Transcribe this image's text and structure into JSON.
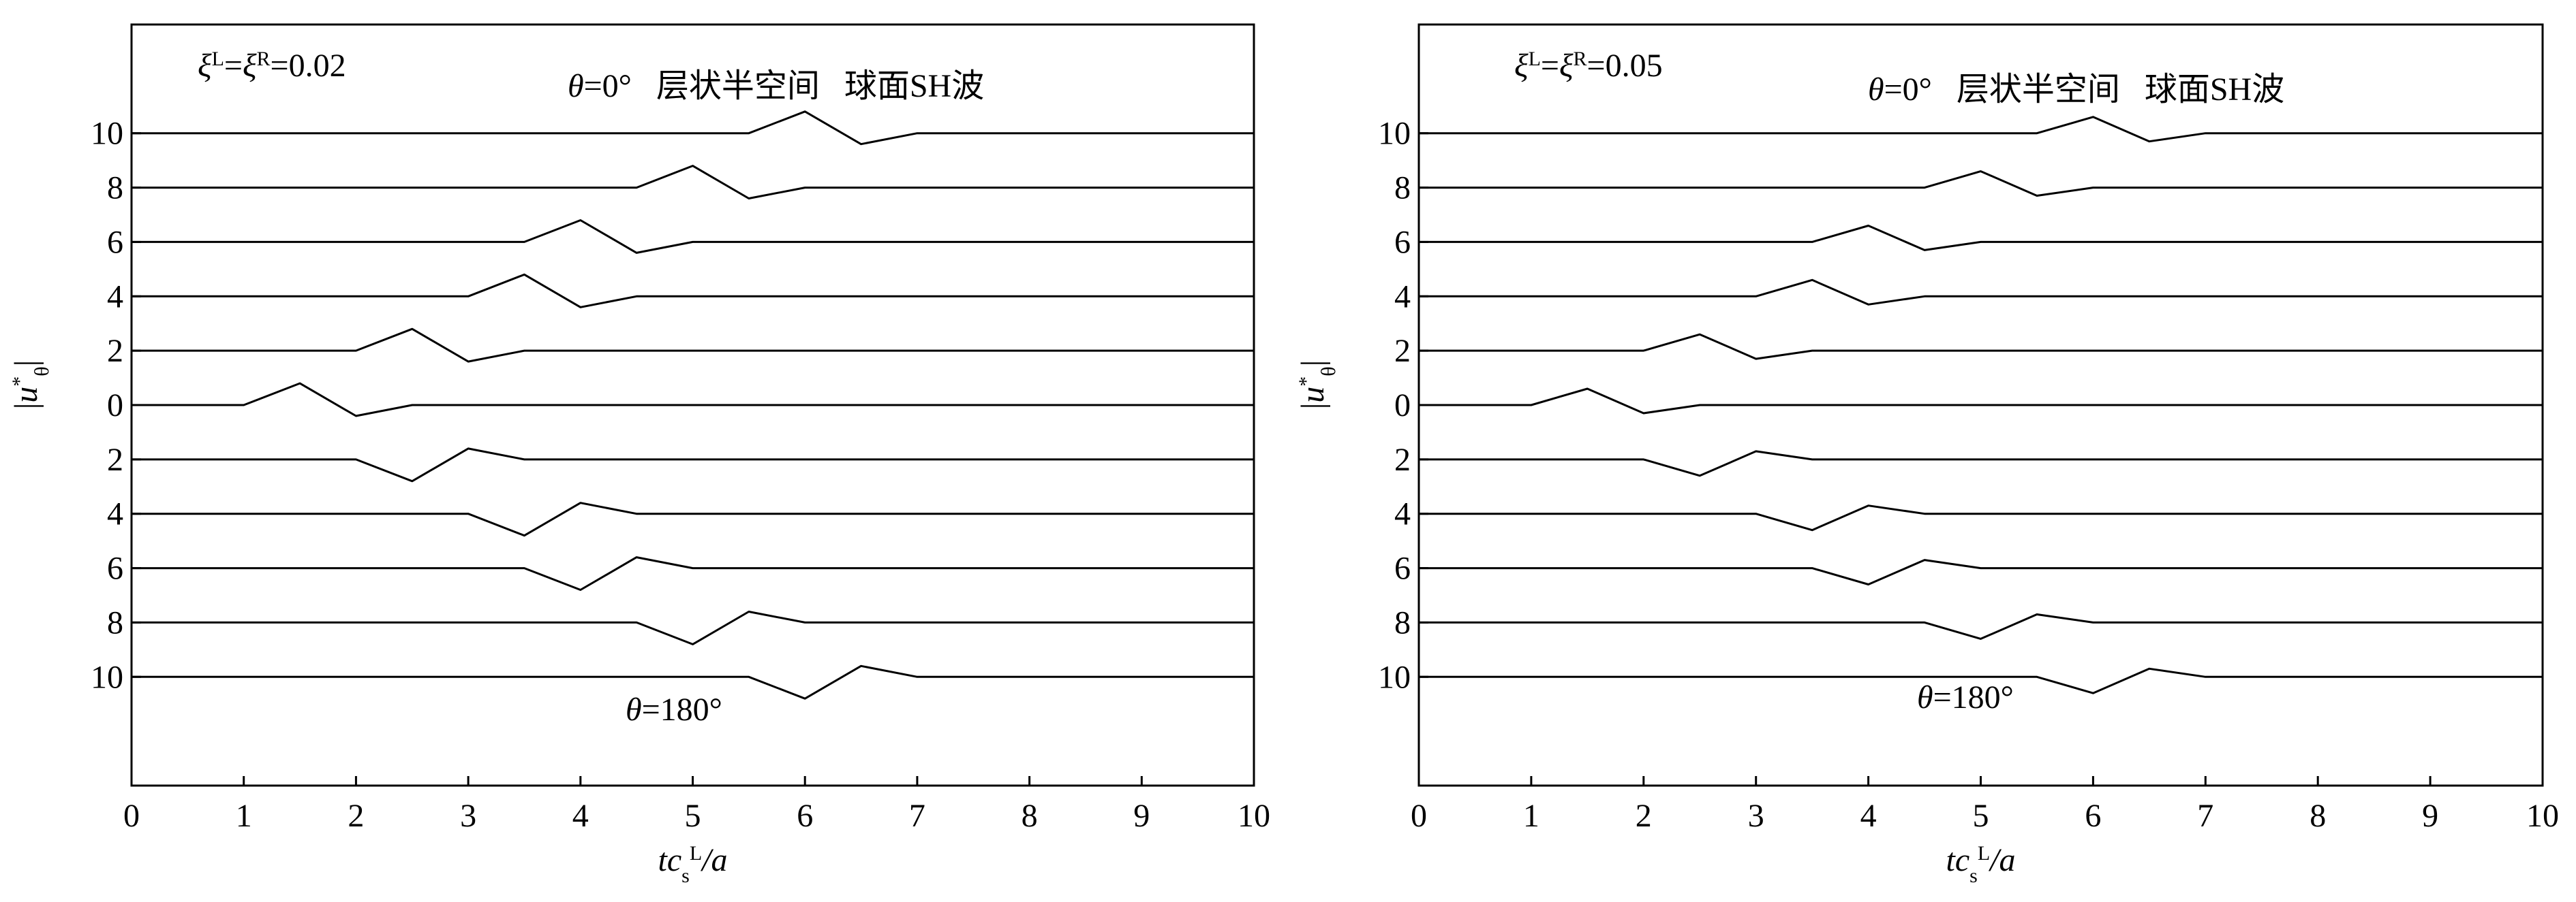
{
  "chart_data": [
    {
      "type": "line",
      "color": "#000000",
      "annotations": [
        [
          {
            "t": "ξ",
            "f": "i"
          },
          {
            "t": "L",
            "f": "sup"
          },
          {
            "t": "=",
            "f": "n"
          },
          {
            "t": "ξ",
            "f": "i"
          },
          {
            "t": "R",
            "f": "sup"
          },
          {
            "t": "=0.02",
            "f": "n"
          }
        ],
        [
          {
            "t": "θ",
            "f": "i"
          },
          {
            "t": "=0°   层状半空间   球面SH波",
            "f": "n"
          }
        ],
        [
          {
            "t": "θ",
            "f": "i"
          },
          {
            "t": "=180°",
            "f": "n"
          }
        ]
      ],
      "xlabel": [
        {
          "t": "tc",
          "f": "i"
        },
        {
          "t": "s",
          "f": "sub"
        },
        {
          "t": "L",
          "f": "sup"
        },
        {
          "t": "/a",
          "f": "i"
        }
      ],
      "ylabel": [
        {
          "t": "|",
          "f": "n"
        },
        {
          "t": "u",
          "f": "i"
        },
        {
          "t": "*",
          "f": "sup"
        },
        {
          "t": "θ",
          "f": "sub"
        },
        {
          "t": "|",
          "f": "n"
        }
      ],
      "xlim": [
        0,
        10
      ],
      "xticks": [
        0,
        1,
        2,
        3,
        4,
        5,
        6,
        7,
        8,
        9,
        10
      ],
      "ylim": [
        -14,
        14
      ],
      "yticks": [
        {
          "value": 10,
          "label": "10"
        },
        {
          "value": 8,
          "label": "8"
        },
        {
          "value": 6,
          "label": "6"
        },
        {
          "value": 4,
          "label": "4"
        },
        {
          "value": 2,
          "label": "2"
        },
        0,
        {
          "value": -2,
          "label": "2"
        },
        {
          "value": -4,
          "label": "4"
        },
        {
          "value": -6,
          "label": "6"
        },
        {
          "value": -8,
          "label": "8"
        },
        {
          "value": -10,
          "label": "10"
        }
      ],
      "x": [
        0,
        0.5,
        1,
        1.5,
        2,
        2.5,
        3,
        3.5,
        4,
        4.5,
        5,
        5.5,
        6,
        6.5,
        7,
        7.5,
        8,
        8.5,
        9,
        9.5,
        10
      ],
      "series": [
        {
          "values": [
            10,
            10,
            10,
            10,
            10,
            10,
            10,
            10,
            10,
            10,
            10,
            10,
            10.8,
            9.6,
            10,
            10,
            10,
            10,
            10,
            10,
            10
          ]
        },
        {
          "values": [
            8,
            8,
            8,
            8,
            8,
            8,
            8,
            8,
            8,
            8,
            8.8,
            7.6,
            8,
            8,
            8,
            8,
            8,
            8,
            8,
            8,
            8
          ]
        },
        {
          "values": [
            6,
            6,
            6,
            6,
            6,
            6,
            6,
            6,
            6.8,
            5.6,
            6,
            6,
            6,
            6,
            6,
            6,
            6,
            6,
            6,
            6,
            6
          ]
        },
        {
          "values": [
            4,
            4,
            4,
            4,
            4,
            4,
            4,
            4.8,
            3.6,
            4,
            4,
            4,
            4,
            4,
            4,
            4,
            4,
            4,
            4,
            4,
            4
          ]
        },
        {
          "values": [
            2,
            2,
            2,
            2,
            2,
            2.8,
            1.6,
            2,
            2,
            2,
            2,
            2,
            2,
            2,
            2,
            2,
            2,
            2,
            2,
            2,
            2
          ]
        },
        {
          "values": [
            0,
            0,
            0,
            0.8,
            -0.4,
            0,
            0,
            0,
            0,
            0,
            0,
            0,
            0,
            0,
            0,
            0,
            0,
            0,
            0,
            0,
            0
          ]
        },
        {
          "values": [
            -2,
            -2,
            -2,
            -2,
            -2,
            -2.8,
            -1.6,
            -2,
            -2,
            -2,
            -2,
            -2,
            -2,
            -2,
            -2,
            -2,
            -2,
            -2,
            -2,
            -2,
            -2
          ]
        },
        {
          "values": [
            -4,
            -4,
            -4,
            -4,
            -4,
            -4,
            -4,
            -4.8,
            -3.6,
            -4,
            -4,
            -4,
            -4,
            -4,
            -4,
            -4,
            -4,
            -4,
            -4,
            -4,
            -4
          ]
        },
        {
          "values": [
            -6,
            -6,
            -6,
            -6,
            -6,
            -6,
            -6,
            -6,
            -6.8,
            -5.6,
            -6,
            -6,
            -6,
            -6,
            -6,
            -6,
            -6,
            -6,
            -6,
            -6,
            -6
          ]
        },
        {
          "values": [
            -8,
            -8,
            -8,
            -8,
            -8,
            -8,
            -8,
            -8,
            -8,
            -8,
            -8.8,
            -7.6,
            -8,
            -8,
            -8,
            -8,
            -8,
            -8,
            -8,
            -8,
            -8
          ]
        },
        {
          "values": [
            -10,
            -10,
            -10,
            -10,
            -10,
            -10,
            -10,
            -10,
            -10,
            -10,
            -10,
            -10,
            -10.8,
            -9.6,
            -10,
            -10,
            -10,
            -10,
            -10,
            -10,
            -10
          ]
        }
      ]
    },
    {
      "type": "line",
      "color": "#000000",
      "annotations": [
        [
          {
            "t": "ξ",
            "f": "i"
          },
          {
            "t": "L",
            "f": "sup"
          },
          {
            "t": "=",
            "f": "n"
          },
          {
            "t": "ξ",
            "f": "i"
          },
          {
            "t": "R",
            "f": "sup"
          },
          {
            "t": "=0.05",
            "f": "n"
          }
        ],
        [
          {
            "t": "θ",
            "f": "i"
          },
          {
            "t": "=0°   层状半空间   球面SH波",
            "f": "n"
          }
        ],
        [
          {
            "t": "θ",
            "f": "i"
          },
          {
            "t": "=180°",
            "f": "n"
          }
        ]
      ],
      "xlabel": [
        {
          "t": "tc",
          "f": "i"
        },
        {
          "t": "s",
          "f": "sub"
        },
        {
          "t": "L",
          "f": "sup"
        },
        {
          "t": "/a",
          "f": "i"
        }
      ],
      "ylabel": [
        {
          "t": "|",
          "f": "n"
        },
        {
          "t": "u",
          "f": "i"
        },
        {
          "t": "*",
          "f": "sup"
        },
        {
          "t": "θ",
          "f": "sub"
        },
        {
          "t": "|",
          "f": "n"
        }
      ],
      "xlim": [
        0,
        10
      ],
      "xticks": [
        0,
        1,
        2,
        3,
        4,
        5,
        6,
        7,
        8,
        9,
        10
      ],
      "ylim": [
        -14,
        14
      ],
      "yticks": [
        {
          "value": 10,
          "label": "10"
        },
        {
          "value": 8,
          "label": "8"
        },
        {
          "value": 6,
          "label": "6"
        },
        {
          "value": 4,
          "label": "4"
        },
        {
          "value": 2,
          "label": "2"
        },
        0,
        {
          "value": -2,
          "label": "2"
        },
        {
          "value": -4,
          "label": "4"
        },
        {
          "value": -6,
          "label": "6"
        },
        {
          "value": -8,
          "label": "8"
        },
        {
          "value": -10,
          "label": "10"
        }
      ],
      "x": [
        0,
        0.5,
        1,
        1.5,
        2,
        2.5,
        3,
        3.5,
        4,
        4.5,
        5,
        5.5,
        6,
        6.5,
        7,
        7.5,
        8,
        8.5,
        9,
        9.5,
        10
      ],
      "series": [
        {
          "values": [
            10,
            10,
            10,
            10,
            10,
            10,
            10,
            10,
            10,
            10,
            10,
            10,
            10.6,
            9.7,
            10,
            10,
            10,
            10,
            10,
            10,
            10
          ]
        },
        {
          "values": [
            8,
            8,
            8,
            8,
            8,
            8,
            8,
            8,
            8,
            8,
            8.6,
            7.7,
            8,
            8,
            8,
            8,
            8,
            8,
            8,
            8,
            8
          ]
        },
        {
          "values": [
            6,
            6,
            6,
            6,
            6,
            6,
            6,
            6,
            6.6,
            5.7,
            6,
            6,
            6,
            6,
            6,
            6,
            6,
            6,
            6,
            6,
            6
          ]
        },
        {
          "values": [
            4,
            4,
            4,
            4,
            4,
            4,
            4,
            4.6,
            3.7,
            4,
            4,
            4,
            4,
            4,
            4,
            4,
            4,
            4,
            4,
            4,
            4
          ]
        },
        {
          "values": [
            2,
            2,
            2,
            2,
            2,
            2.6,
            1.7,
            2,
            2,
            2,
            2,
            2,
            2,
            2,
            2,
            2,
            2,
            2,
            2,
            2,
            2
          ]
        },
        {
          "values": [
            0,
            0,
            0,
            0.6,
            -0.3,
            0,
            0,
            0,
            0,
            0,
            0,
            0,
            0,
            0,
            0,
            0,
            0,
            0,
            0,
            0,
            0
          ]
        },
        {
          "values": [
            -2,
            -2,
            -2,
            -2,
            -2,
            -2.6,
            -1.7,
            -2,
            -2,
            -2,
            -2,
            -2,
            -2,
            -2,
            -2,
            -2,
            -2,
            -2,
            -2,
            -2,
            -2
          ]
        },
        {
          "values": [
            -4,
            -4,
            -4,
            -4,
            -4,
            -4,
            -4,
            -4.6,
            -3.7,
            -4,
            -4,
            -4,
            -4,
            -4,
            -4,
            -4,
            -4,
            -4,
            -4,
            -4,
            -4
          ]
        },
        {
          "values": [
            -6,
            -6,
            -6,
            -6,
            -6,
            -6,
            -6,
            -6,
            -6.6,
            -5.7,
            -6,
            -6,
            -6,
            -6,
            -6,
            -6,
            -6,
            -6,
            -6,
            -6,
            -6
          ]
        },
        {
          "values": [
            -8,
            -8,
            -8,
            -8,
            -8,
            -8,
            -8,
            -8,
            -8,
            -8,
            -8.6,
            -7.7,
            -8,
            -8,
            -8,
            -8,
            -8,
            -8,
            -8,
            -8,
            -8
          ]
        },
        {
          "values": [
            -10,
            -10,
            -10,
            -10,
            -10,
            -10,
            -10,
            -10,
            -10,
            -10,
            -10,
            -10,
            -10.6,
            -9.7,
            -10,
            -10,
            -10,
            -10,
            -10,
            -10,
            -10
          ]
        }
      ]
    }
  ]
}
